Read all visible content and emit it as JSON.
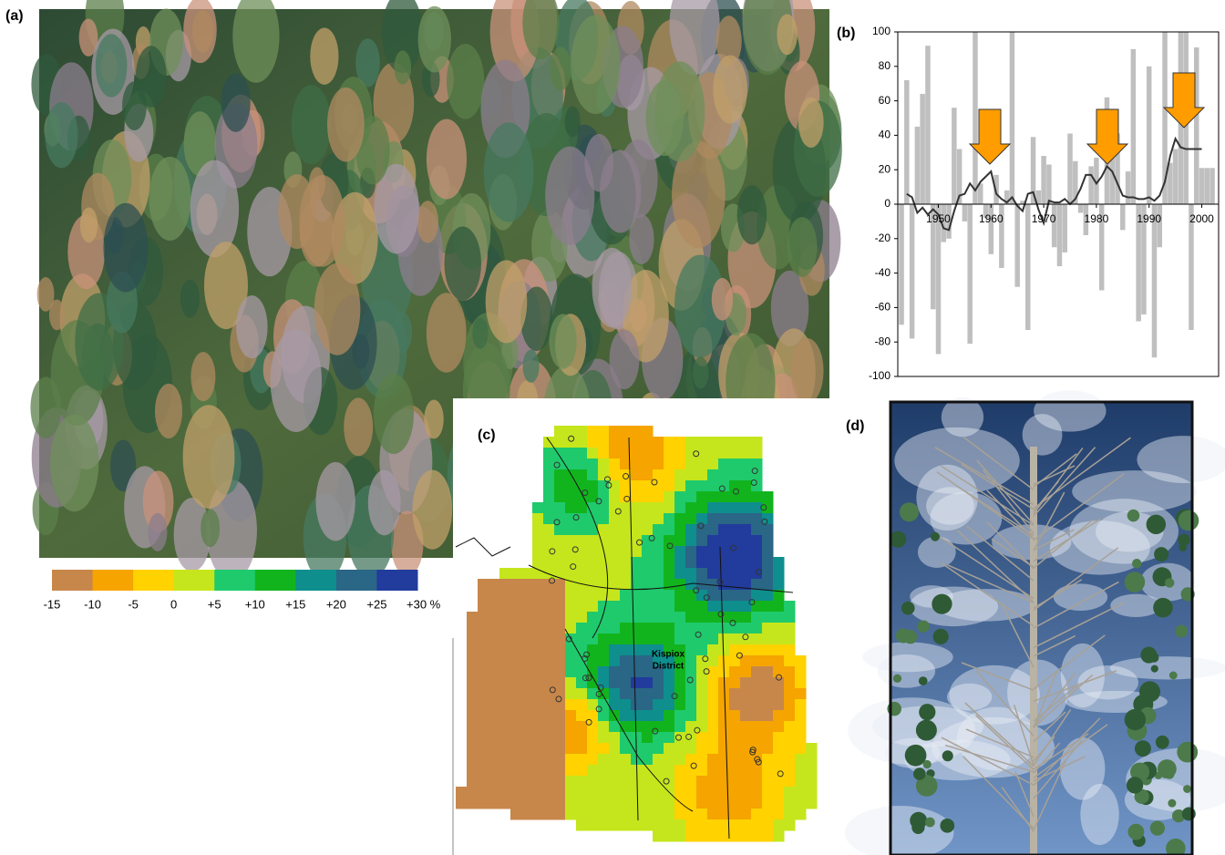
{
  "panels": {
    "a": "(a)",
    "b": "(b)",
    "c": "(c)",
    "d": "(d)"
  },
  "chart_data": {
    "type": "bar",
    "x": [
      1943,
      1944,
      1945,
      1946,
      1947,
      1948,
      1949,
      1950,
      1951,
      1952,
      1953,
      1954,
      1955,
      1956,
      1957,
      1958,
      1959,
      1960,
      1961,
      1962,
      1963,
      1964,
      1965,
      1966,
      1967,
      1968,
      1969,
      1970,
      1971,
      1972,
      1973,
      1974,
      1975,
      1976,
      1977,
      1978,
      1979,
      1980,
      1981,
      1982,
      1983,
      1984,
      1985,
      1986,
      1987,
      1988,
      1989,
      1990,
      1991,
      1992,
      1993,
      1994,
      1995,
      1996,
      1997,
      1998,
      1999,
      2000,
      2001,
      2002
    ],
    "series": [
      {
        "type": "bar",
        "color": "#bfbfbf",
        "values": [
          -70,
          72,
          -78,
          45,
          64,
          92,
          -61,
          -87,
          -22,
          -20,
          56,
          32,
          -10,
          -81,
          100,
          12,
          -8,
          -29,
          17,
          -37,
          8,
          100,
          -48,
          2,
          -73,
          39,
          8,
          28,
          23,
          -25,
          -36,
          -28,
          41,
          25,
          -5,
          -18,
          22,
          27,
          -50,
          62,
          54,
          41,
          -15,
          19,
          90,
          -68,
          -64,
          80,
          -89,
          -25,
          100,
          24,
          32,
          100,
          100,
          -73,
          91,
          21,
          21,
          21
        ]
      },
      {
        "type": "line",
        "color": "#333333",
        "values": [
          null,
          6,
          4,
          -5,
          -2,
          -6,
          -3,
          -6,
          -14,
          -15,
          -4,
          5,
          6,
          12,
          8,
          13,
          16,
          19,
          6,
          3,
          1,
          4,
          -1,
          -4,
          6,
          7,
          -3,
          -11,
          2,
          1,
          1,
          3,
          0,
          3,
          9,
          17,
          17,
          12,
          16,
          22,
          19,
          12,
          5,
          4,
          4,
          3,
          3,
          4,
          2,
          5,
          13,
          28,
          38,
          33,
          32,
          32,
          32,
          32,
          null,
          null
        ]
      }
    ],
    "xlim": [
      1942.3,
      2003.2
    ],
    "xticks": [
      1950,
      1960,
      1970,
      1980,
      1990,
      2000
    ],
    "ylim": [
      -100,
      100
    ],
    "yticks": [
      -100,
      -80,
      -60,
      -40,
      -20,
      0,
      20,
      40,
      60,
      80,
      100
    ]
  },
  "map": {
    "label": [
      "Kispiox",
      "District"
    ],
    "colorbar": {
      "colors": [
        "#c8874a",
        "#f5a400",
        "#ffd200",
        "#c5e61c",
        "#1fca6c",
        "#12b41e",
        "#0f8e8e",
        "#2a6685",
        "#213c9c"
      ],
      "ticks": [
        "-15",
        "-10",
        "-5",
        "0",
        "+5",
        "+10",
        "+15",
        "+20",
        "+25",
        "+30 %"
      ]
    }
  }
}
